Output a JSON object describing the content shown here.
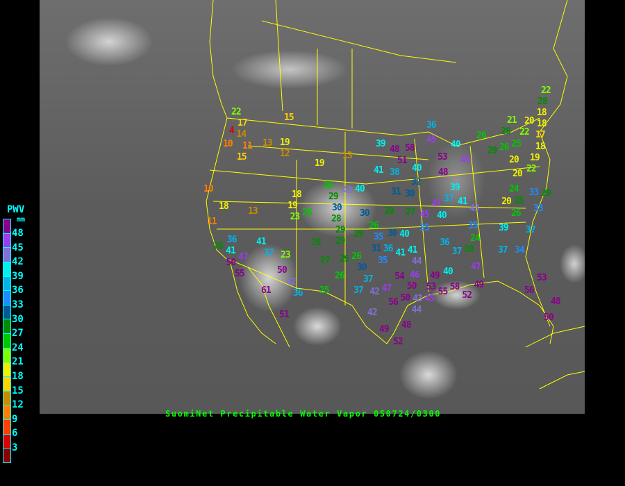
{
  "title": "SuomiNet Precipitable Water Vapor 050724/0300",
  "legend": {
    "title": "PWV",
    "unit": "mm",
    "labels": [
      "48",
      "45",
      "42",
      "39",
      "36",
      "33",
      "30",
      "27",
      "24",
      "21",
      "18",
      "15",
      "12",
      "9",
      "6",
      "3"
    ],
    "colors": [
      "#8b008b",
      "#9b3cf0",
      "#8070d8",
      "#00f0f0",
      "#00b4e8",
      "#1e8cff",
      "#005a96",
      "#008c00",
      "#00c800",
      "#80ff00",
      "#f0f000",
      "#ffd200",
      "#c88c00",
      "#ff8000",
      "#ff4000",
      "#dc0000",
      "#8b0000"
    ]
  },
  "border_color": "#ffff00",
  "station_values": [
    22,
    17,
    4,
    14,
    10,
    11,
    15,
    13,
    19,
    12,
    15,
    19,
    13,
    10,
    18,
    11,
    13,
    18,
    19,
    23,
    26,
    26,
    43,
    40,
    29,
    30,
    28,
    29,
    29,
    29,
    28,
    36,
    41,
    47,
    50,
    41,
    37,
    23,
    55,
    50,
    42,
    61,
    36,
    51,
    28,
    27,
    29,
    26,
    26,
    30,
    37,
    37,
    25,
    42,
    42,
    36,
    39,
    48,
    58,
    45,
    40,
    51,
    41,
    38,
    40,
    53,
    45,
    48,
    32,
    31,
    30,
    39,
    37,
    41,
    47,
    45,
    40,
    43,
    28,
    27,
    30,
    35,
    35,
    39,
    37,
    26,
    28,
    25,
    29,
    26,
    20,
    22,
    20,
    24,
    28,
    33,
    29,
    20,
    26,
    33,
    21,
    20,
    22,
    18,
    17,
    18,
    19,
    22,
    28,
    18,
    36,
    37,
    28,
    24,
    37,
    34,
    40,
    47,
    49,
    54,
    46,
    50,
    53,
    55,
    45,
    50,
    56,
    43,
    44,
    58,
    49,
    52,
    47,
    49,
    48,
    52,
    56,
    53,
    48,
    50,
    35,
    31,
    36,
    41,
    41,
    44,
    35,
    30,
    40,
    26
  ]
}
